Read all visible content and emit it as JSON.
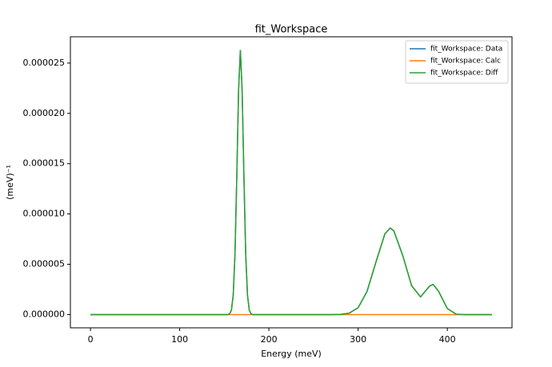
{
  "chart_data": {
    "type": "line",
    "title": "fit_Workspace",
    "xlabel": "Energy (meV)",
    "ylabel": "(meV)⁻¹",
    "x": [
      0,
      10,
      20,
      30,
      40,
      50,
      60,
      70,
      80,
      90,
      100,
      110,
      120,
      130,
      140,
      150,
      154,
      156,
      158,
      160,
      162,
      164,
      166,
      168,
      170,
      172,
      174,
      176,
      178,
      180,
      182,
      190,
      200,
      210,
      220,
      230,
      240,
      250,
      260,
      270,
      280,
      290,
      300,
      310,
      320,
      330,
      336,
      340,
      350,
      360,
      370,
      380,
      384,
      390,
      400,
      410,
      420,
      430,
      440,
      450
    ],
    "series": [
      {
        "name": "fit_Workspace: Data",
        "color": "#1f77b4",
        "values": [
          0,
          0,
          0,
          0,
          0,
          0,
          0,
          0,
          0,
          0,
          0,
          0,
          0,
          0,
          0,
          0,
          0,
          7e-08,
          4.4e-07,
          1.93e-06,
          6.05e-06,
          1.37e-05,
          2.23e-05,
          2.63e-05,
          2.23e-05,
          1.37e-05,
          6.05e-06,
          1.93e-06,
          4.4e-07,
          7e-08,
          0,
          0,
          0,
          0,
          0,
          0,
          0,
          0,
          0,
          0,
          2e-08,
          1.4e-07,
          6.8e-07,
          2.3e-06,
          5.22e-06,
          8.02e-06,
          8.6e-06,
          8.33e-06,
          5.88e-06,
          2.87e-06,
          1.76e-06,
          2.83e-06,
          3e-06,
          2.35e-06,
          6e-07,
          4e-08,
          0,
          0,
          0,
          0
        ]
      },
      {
        "name": "fit_Workspace: Calc",
        "color": "#ff7f0e",
        "values": [
          0,
          0,
          0,
          0,
          0,
          0,
          0,
          0,
          0,
          0,
          0,
          0,
          0,
          0,
          0,
          0,
          0,
          0,
          0,
          0,
          0,
          0,
          0,
          0,
          0,
          0,
          0,
          0,
          0,
          0,
          0,
          0,
          0,
          0,
          0,
          0,
          0,
          0,
          0,
          0,
          0,
          0,
          0,
          0,
          0,
          0,
          0,
          0,
          0,
          0,
          0,
          0,
          0,
          0,
          0,
          0,
          0,
          0,
          0,
          0
        ]
      },
      {
        "name": "fit_Workspace: Diff",
        "color": "#2ca02c",
        "values": [
          0,
          0,
          0,
          0,
          0,
          0,
          0,
          0,
          0,
          0,
          0,
          0,
          0,
          0,
          0,
          0,
          0,
          7e-08,
          4.4e-07,
          1.93e-06,
          6.05e-06,
          1.37e-05,
          2.23e-05,
          2.63e-05,
          2.23e-05,
          1.37e-05,
          6.05e-06,
          1.93e-06,
          4.4e-07,
          7e-08,
          0,
          0,
          0,
          0,
          0,
          0,
          0,
          0,
          0,
          0,
          2e-08,
          1.4e-07,
          6.8e-07,
          2.3e-06,
          5.22e-06,
          8.02e-06,
          8.6e-06,
          8.33e-06,
          5.88e-06,
          2.87e-06,
          1.76e-06,
          2.83e-06,
          3e-06,
          2.35e-06,
          6e-07,
          4e-08,
          0,
          0,
          0,
          0
        ]
      }
    ],
    "xlim": [
      -22.5,
      472.5
    ],
    "xticks": [
      0,
      100,
      200,
      300,
      400
    ],
    "ylim": [
      -1.315e-06,
      2.7615e-05
    ],
    "yticks": [
      {
        "value": 0,
        "label": "0.000000"
      },
      {
        "value": 5e-06,
        "label": "0.000005"
      },
      {
        "value": 1e-05,
        "label": "0.000010"
      },
      {
        "value": 1.5e-05,
        "label": "0.000015"
      },
      {
        "value": 2e-05,
        "label": "0.000020"
      },
      {
        "value": 2.5e-05,
        "label": "0.000025"
      }
    ],
    "legend": "upper right"
  }
}
